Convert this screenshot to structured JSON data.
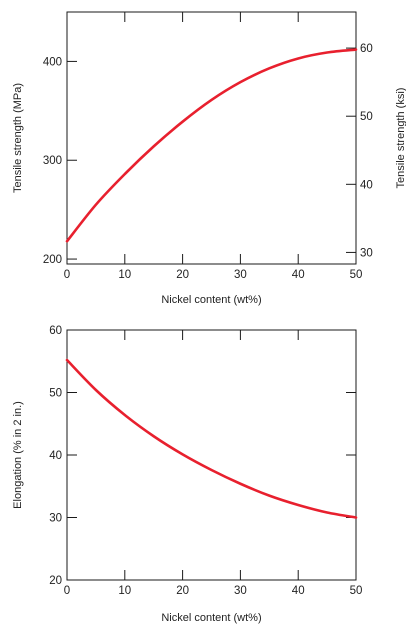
{
  "colors": {
    "curve": "#e8202e",
    "axis": "#1a1a1a"
  },
  "chart_data": [
    {
      "type": "line",
      "xlabel": "Nickel content (wt%)",
      "ylabel": "Tensile strength (MPa)",
      "y2label": "Tensile strength (ksi)",
      "xlim": [
        0,
        50
      ],
      "ylim": [
        195,
        450
      ],
      "y2lim": [
        28.3,
        65.3
      ],
      "xticks": [
        0,
        10,
        20,
        30,
        40,
        50
      ],
      "yticks": [
        200,
        300,
        400
      ],
      "y2ticks": [
        30,
        40,
        50,
        60
      ],
      "grid": false,
      "series": [
        {
          "x": [
            0,
            5,
            10,
            15,
            20,
            25,
            30,
            35,
            40,
            45,
            50
          ],
          "values": [
            218,
            255,
            286,
            314,
            339,
            361,
            379,
            393,
            403,
            409,
            412
          ]
        }
      ]
    },
    {
      "type": "line",
      "xlabel": "Nickel content (wt%)",
      "ylabel": "Elongation (% in 2 in.)",
      "xlim": [
        0,
        50
      ],
      "ylim": [
        20,
        60
      ],
      "xticks": [
        0,
        10,
        20,
        30,
        40,
        50
      ],
      "yticks": [
        20,
        30,
        40,
        50,
        60
      ],
      "grid": false,
      "series": [
        {
          "x": [
            0,
            5,
            10,
            15,
            20,
            25,
            30,
            35,
            40,
            45,
            50
          ],
          "values": [
            55.2,
            50.4,
            46.4,
            43.0,
            40.1,
            37.6,
            35.4,
            33.5,
            32.0,
            30.8,
            30.0
          ]
        }
      ]
    }
  ]
}
